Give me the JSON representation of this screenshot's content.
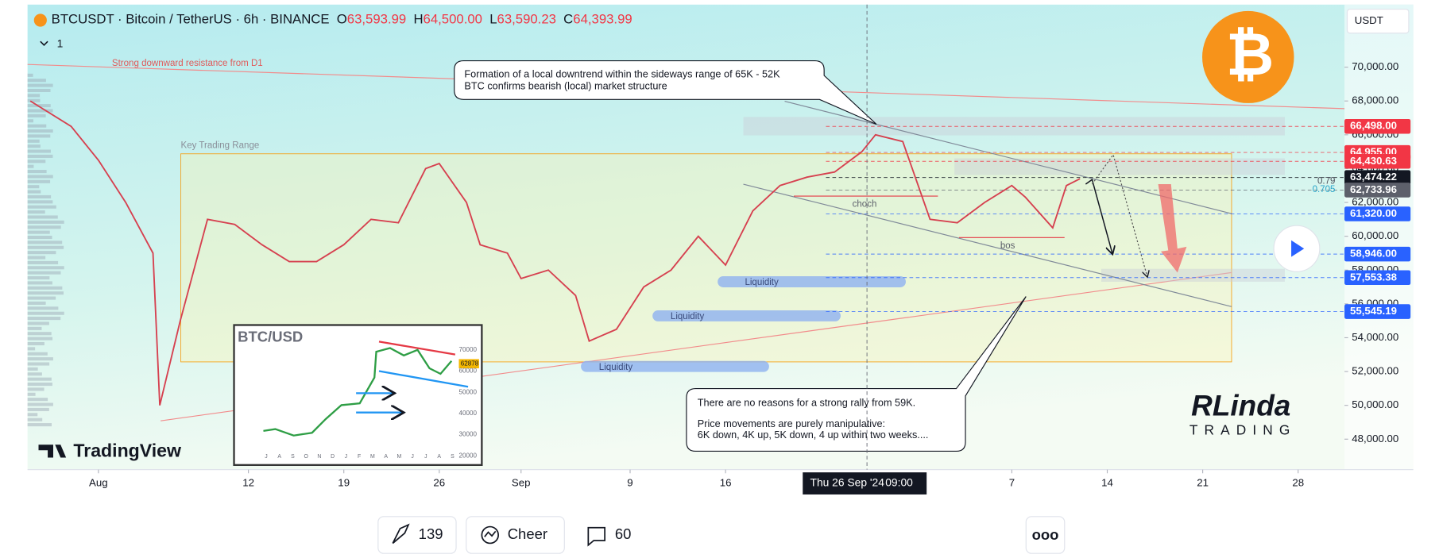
{
  "header": {
    "symbol": "BTCUSDT · Bitcoin / TetherUS · 6h · BINANCE",
    "o_label": "O",
    "open": "63,593.99",
    "h_label": "H",
    "high": "64,500.00",
    "l_label": "L",
    "low": "63,590.23",
    "c_label": "C",
    "close": "64,393.99",
    "interval_count": "1",
    "currency": "USDT"
  },
  "chart_data": {
    "type": "line",
    "x": [
      -5,
      -2,
      0,
      2,
      4,
      4.5,
      6,
      8,
      10,
      12,
      14,
      16,
      18,
      20,
      22,
      24,
      25,
      27,
      28,
      30,
      31,
      33,
      35,
      36,
      38,
      40,
      42,
      44,
      46,
      48,
      50,
      52,
      54,
      56,
      57,
      59,
      61,
      63,
      65,
      67,
      68,
      70,
      71,
      72
    ],
    "series": [
      {
        "name": "BTCUSDT",
        "color": "#d6404f",
        "values": [
          68000,
          66500,
          64500,
          62000,
          59000,
          50000,
          55000,
          61000,
          60700,
          59500,
          58500,
          58500,
          59500,
          61000,
          60800,
          64000,
          64300,
          62000,
          59500,
          59000,
          57500,
          58000,
          56500,
          53800,
          54500,
          57000,
          58000,
          60000,
          58300,
          61500,
          63000,
          63500,
          63800,
          65000,
          66000,
          65600,
          61000,
          60800,
          62000,
          63000,
          62300,
          60500,
          63000,
          63400
        ]
      }
    ],
    "xlim": [
      -5.2,
      91.4
    ],
    "ylim": [
      46200,
      73700
    ],
    "yticks": [
      {
        "value": 48000,
        "label": "48,000.00"
      },
      {
        "value": 50000,
        "label": "50,000.00"
      },
      {
        "value": 52000,
        "label": "52,000.00"
      },
      {
        "value": 54000,
        "label": "54,000.00"
      },
      {
        "value": 56000,
        "label": "56,000.00"
      },
      {
        "value": 58000,
        "label": "58,000.00"
      },
      {
        "value": 60000,
        "label": "60,000.00"
      },
      {
        "value": 62000,
        "label": "62,000.00"
      },
      {
        "value": 64000,
        "label": "64,000.00"
      },
      {
        "value": 66000,
        "label": "66,000.00"
      },
      {
        "value": 68000,
        "label": "68,000.00"
      },
      {
        "value": 70000,
        "label": "70,000.00"
      }
    ],
    "xticks": [
      {
        "value": 0,
        "label": "Aug"
      },
      {
        "value": 11,
        "label": "12"
      },
      {
        "value": 18,
        "label": "19"
      },
      {
        "value": 25,
        "label": "26"
      },
      {
        "value": 31,
        "label": "Sep"
      },
      {
        "value": 39,
        "label": "9"
      },
      {
        "value": 46,
        "label": "16"
      },
      {
        "value": 67,
        "label": "7"
      },
      {
        "value": 74,
        "label": "14"
      },
      {
        "value": 81,
        "label": "21"
      },
      {
        "value": 88,
        "label": "28"
      }
    ],
    "crosshair": {
      "x": 56.375,
      "label": "Thu 26 Sep '24",
      "time": "09:00"
    },
    "price_markers": [
      {
        "value": 66498,
        "label": "66,498.00",
        "color": "#f23645"
      },
      {
        "value": 64955,
        "label": "64,955.00",
        "color": "#f23645"
      },
      {
        "value": 64430.63,
        "label": "64,430.63",
        "color": "#f23645"
      },
      {
        "value": 63474.22,
        "label": "63,474.22",
        "color": "#131722"
      },
      {
        "value": 62733.96,
        "label": "62,733.96",
        "color": "#5d606b"
      },
      {
        "value": 61320,
        "label": "61,320.00",
        "color": "#2962ff"
      },
      {
        "value": 58946,
        "label": "58,946.00",
        "color": "#2962ff"
      },
      {
        "value": 57553.38,
        "label": "57,553.38",
        "color": "#2962ff"
      },
      {
        "value": 55545.19,
        "label": "55,545.19",
        "color": "#2962ff"
      }
    ],
    "fib_levels": [
      "0.79",
      "0.705"
    ],
    "annotations": {
      "resistance": "Strong downward resistance from D1",
      "range": "Key Trading Range",
      "top_callout": [
        "Formation of a local downtrend within the sideways range of 65K - 52K",
        "BTC confirms bearish (local) market structure"
      ],
      "bottom_callout": [
        "There are no reasons for a strong rally from 59K.",
        "Price movements are purely manipulative:",
        "6K down, 4K up, 5K down, 4 up within two weeks...."
      ],
      "choch": "choch",
      "bos": "bos",
      "liquidity": [
        "Liquidity",
        "Liquidity",
        "Liquidity"
      ]
    }
  },
  "watermark": "TradingView",
  "brand": {
    "name": "RLinda",
    "sub": "TRADING"
  },
  "inset": {
    "title": "BTC/USD",
    "ylabels": [
      "70000",
      "60000",
      "50000",
      "40000",
      "30000",
      "20000"
    ],
    "tag": "62878",
    "months": [
      "J",
      "A",
      "S",
      "O",
      "N",
      "D",
      "J",
      "F",
      "M",
      "A",
      "M",
      "J",
      "J",
      "A",
      "S"
    ]
  },
  "footer": {
    "boosts": "139",
    "cheer": "Cheer",
    "comments": "60"
  }
}
